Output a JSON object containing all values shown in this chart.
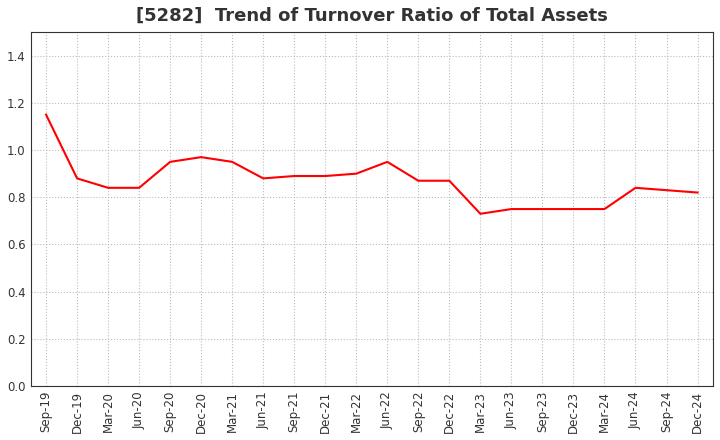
{
  "title": "[5282]  Trend of Turnover Ratio of Total Assets",
  "labels": [
    "Sep-19",
    "Dec-19",
    "Mar-20",
    "Jun-20",
    "Sep-20",
    "Dec-20",
    "Mar-21",
    "Jun-21",
    "Sep-21",
    "Dec-21",
    "Mar-22",
    "Jun-22",
    "Sep-22",
    "Dec-22",
    "Mar-23",
    "Jun-23",
    "Sep-23",
    "Dec-23",
    "Mar-24",
    "Jun-24",
    "Sep-24",
    "Dec-24"
  ],
  "values": [
    1.15,
    0.88,
    0.84,
    0.84,
    0.95,
    0.97,
    0.95,
    0.88,
    0.89,
    0.89,
    0.9,
    0.95,
    0.87,
    0.87,
    0.73,
    0.75,
    0.75,
    0.75,
    0.75,
    0.84,
    0.83,
    0.82
  ],
  "line_color": "#ff0000",
  "line_width": 1.5,
  "ylim": [
    0.0,
    1.5
  ],
  "yticks": [
    0.0,
    0.2,
    0.4,
    0.6,
    0.8,
    1.0,
    1.2,
    1.4
  ],
  "grid_color": "#bbbbbb",
  "grid_linestyle": ":",
  "grid_linewidth": 0.8,
  "background_color": "#ffffff",
  "title_fontsize": 13,
  "title_color": "#333333",
  "tick_fontsize": 8.5,
  "tick_color": "#333333",
  "spine_color": "#333333"
}
